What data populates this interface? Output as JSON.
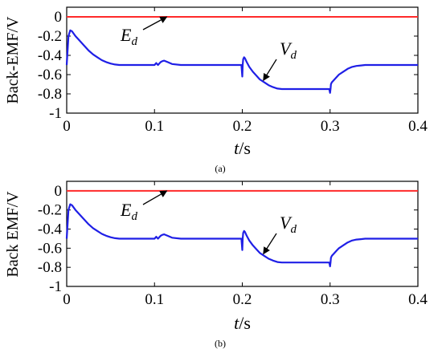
{
  "colors": {
    "e_line": "#ff2a2a",
    "v_line": "#1f1fe6",
    "axis": "#000000"
  },
  "chart_data": [
    {
      "type": "line",
      "caption": "(a)",
      "ylabel": "Back-EMF/V",
      "xlabel_main": "t",
      "xlabel_unit": "/s",
      "xlim": [
        0,
        0.4
      ],
      "ylim": [
        -1,
        0.1
      ],
      "xticks": [
        0,
        0.1,
        0.2,
        0.3,
        0.4
      ],
      "xtick_labels": [
        "0",
        "0.1",
        "0.2",
        "0.3",
        "0.4"
      ],
      "yticks": [
        0,
        -0.2,
        -0.4,
        -0.6,
        -0.8,
        -1
      ],
      "ytick_labels": [
        "0",
        "-0.2",
        "-0.4",
        "-0.6",
        "-0.8",
        "-1"
      ],
      "grid": false,
      "annotations": [
        {
          "main": "E",
          "sub": "d",
          "arrow_to": [
            0.114,
            0
          ]
        },
        {
          "main": "V",
          "sub": "d",
          "arrow_to": [
            0.224,
            -0.66
          ]
        }
      ],
      "series": [
        {
          "key": "E",
          "color": "#ff2a2a",
          "x": [
            0,
            0.4
          ],
          "y": [
            0,
            0
          ]
        },
        {
          "key": "V",
          "color": "#1f1fe6",
          "x": [
            0,
            0.002,
            0.004,
            0.006,
            0.01,
            0.015,
            0.02,
            0.025,
            0.03,
            0.035,
            0.04,
            0.045,
            0.05,
            0.055,
            0.06,
            0.07,
            0.08,
            0.09,
            0.1,
            0.102,
            0.104,
            0.105,
            0.107,
            0.109,
            0.111,
            0.115,
            0.12,
            0.13,
            0.15,
            0.17,
            0.19,
            0.199,
            0.2,
            0.2005,
            0.201,
            0.202,
            0.203,
            0.205,
            0.208,
            0.212,
            0.216,
            0.22,
            0.225,
            0.23,
            0.235,
            0.24,
            0.245,
            0.25,
            0.26,
            0.27,
            0.28,
            0.29,
            0.299,
            0.3,
            0.3005,
            0.301,
            0.302,
            0.304,
            0.307,
            0.31,
            0.315,
            0.32,
            0.325,
            0.33,
            0.335,
            0.34,
            0.35,
            0.36,
            0.38,
            0.4
          ],
          "y": [
            -0.5,
            -0.2,
            -0.14,
            -0.15,
            -0.2,
            -0.25,
            -0.3,
            -0.35,
            -0.39,
            -0.42,
            -0.45,
            -0.47,
            -0.485,
            -0.495,
            -0.5,
            -0.5,
            -0.5,
            -0.5,
            -0.5,
            -0.48,
            -0.5,
            -0.49,
            -0.47,
            -0.46,
            -0.455,
            -0.47,
            -0.49,
            -0.5,
            -0.5,
            -0.5,
            -0.5,
            -0.5,
            -0.62,
            -0.5,
            -0.44,
            -0.42,
            -0.43,
            -0.47,
            -0.52,
            -0.57,
            -0.61,
            -0.65,
            -0.68,
            -0.71,
            -0.73,
            -0.745,
            -0.75,
            -0.75,
            -0.75,
            -0.75,
            -0.75,
            -0.75,
            -0.75,
            -0.79,
            -0.75,
            -0.7,
            -0.68,
            -0.66,
            -0.63,
            -0.6,
            -0.57,
            -0.54,
            -0.52,
            -0.51,
            -0.505,
            -0.5,
            -0.5,
            -0.5,
            -0.5,
            -0.5
          ]
        }
      ]
    },
    {
      "type": "line",
      "caption": "(b)",
      "ylabel": "Back EMF/V",
      "xlabel_main": "t",
      "xlabel_unit": "/s",
      "xlim": [
        0,
        0.4
      ],
      "ylim": [
        -1,
        0.1
      ],
      "xticks": [
        0,
        0.1,
        0.2,
        0.3,
        0.4
      ],
      "xtick_labels": [
        "0",
        "0.1",
        "0.2",
        "0.3",
        "0.4"
      ],
      "yticks": [
        0,
        -0.2,
        -0.4,
        -0.6,
        -0.8,
        -1
      ],
      "ytick_labels": [
        "0",
        "-0.2",
        "-0.4",
        "-0.6",
        "-0.8",
        "-1"
      ],
      "grid": false,
      "annotations": [
        {
          "main": "E",
          "sub": "d",
          "arrow_to": [
            0.114,
            0
          ]
        },
        {
          "main": "V",
          "sub": "d",
          "arrow_to": [
            0.224,
            -0.66
          ]
        }
      ],
      "series": [
        {
          "key": "E",
          "color": "#ff2a2a",
          "x": [
            0,
            0.4
          ],
          "y": [
            0,
            0
          ]
        },
        {
          "key": "V",
          "color": "#1f1fe6",
          "x": [
            0,
            0.002,
            0.004,
            0.006,
            0.01,
            0.015,
            0.02,
            0.025,
            0.03,
            0.035,
            0.04,
            0.045,
            0.05,
            0.055,
            0.06,
            0.07,
            0.08,
            0.09,
            0.1,
            0.102,
            0.104,
            0.105,
            0.107,
            0.109,
            0.111,
            0.115,
            0.12,
            0.13,
            0.15,
            0.17,
            0.19,
            0.199,
            0.2,
            0.2005,
            0.201,
            0.202,
            0.203,
            0.205,
            0.208,
            0.212,
            0.216,
            0.22,
            0.225,
            0.23,
            0.235,
            0.24,
            0.245,
            0.25,
            0.26,
            0.27,
            0.28,
            0.29,
            0.299,
            0.3,
            0.3005,
            0.301,
            0.302,
            0.304,
            0.307,
            0.31,
            0.315,
            0.32,
            0.325,
            0.33,
            0.335,
            0.34,
            0.35,
            0.36,
            0.38,
            0.4
          ],
          "y": [
            -0.5,
            -0.2,
            -0.14,
            -0.15,
            -0.2,
            -0.25,
            -0.3,
            -0.35,
            -0.39,
            -0.42,
            -0.45,
            -0.47,
            -0.485,
            -0.495,
            -0.5,
            -0.5,
            -0.5,
            -0.5,
            -0.5,
            -0.48,
            -0.5,
            -0.49,
            -0.47,
            -0.46,
            -0.455,
            -0.47,
            -0.49,
            -0.5,
            -0.5,
            -0.5,
            -0.5,
            -0.5,
            -0.62,
            -0.5,
            -0.44,
            -0.42,
            -0.43,
            -0.47,
            -0.52,
            -0.57,
            -0.61,
            -0.65,
            -0.68,
            -0.71,
            -0.73,
            -0.745,
            -0.75,
            -0.75,
            -0.75,
            -0.75,
            -0.75,
            -0.75,
            -0.75,
            -0.79,
            -0.75,
            -0.7,
            -0.68,
            -0.66,
            -0.63,
            -0.6,
            -0.57,
            -0.54,
            -0.52,
            -0.51,
            -0.505,
            -0.5,
            -0.5,
            -0.5,
            -0.5,
            -0.5
          ]
        }
      ]
    }
  ]
}
